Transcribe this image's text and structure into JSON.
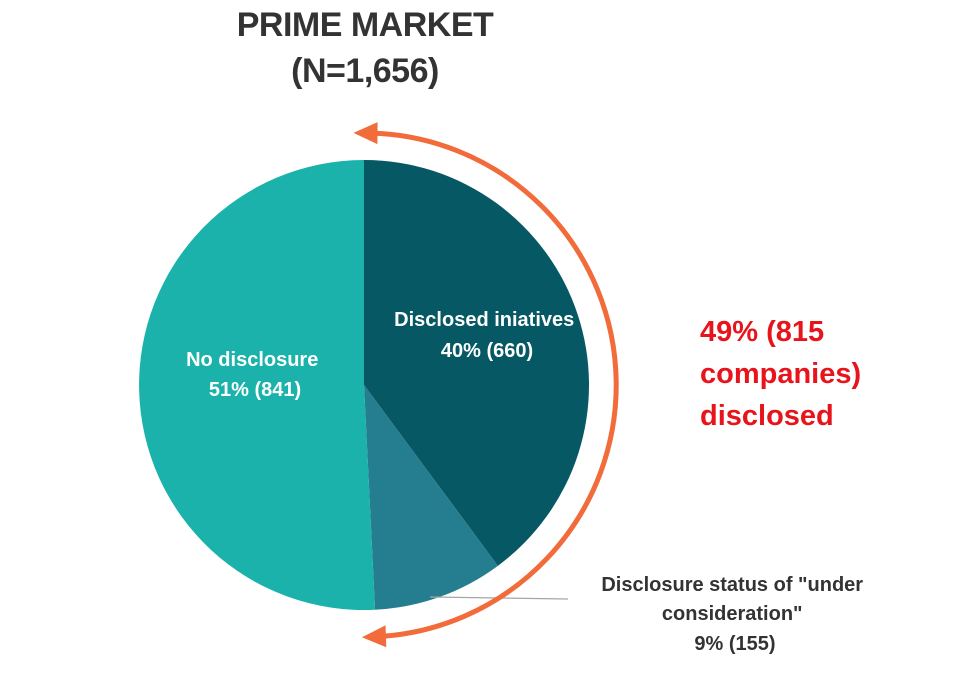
{
  "chart_data": {
    "type": "pie",
    "title": "PRIME MARKET",
    "subtitle": "(N=1,656)",
    "slices": [
      {
        "label": "Disclosed iniatives",
        "percent_label": "40% (660)",
        "value": 660,
        "color": "#065864"
      },
      {
        "label": "Disclosure status of \"under consideration\"",
        "label_lines": [
          "Disclosure status of \"under",
          "consideration\""
        ],
        "percent_label": "9% (155)",
        "value": 155,
        "color": "#257E8F"
      },
      {
        "label": "No disclosure",
        "percent_label": "51% (841)",
        "value": 841,
        "color": "#1AB2AA"
      }
    ],
    "annotation": {
      "lines": [
        "49% (815",
        "companies)",
        "disclosed"
      ],
      "color": "#e8141b",
      "arrow_color": "#F26B3A"
    }
  }
}
